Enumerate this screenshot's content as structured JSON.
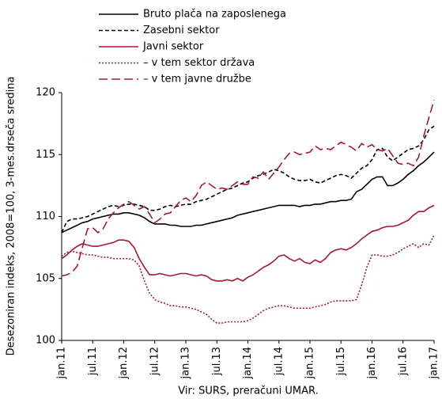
{
  "chart_data": {
    "type": "line",
    "ylabel": "Desezoniran indeks, 2008=100, 3-mes.drseča sredina",
    "source": "Vir: SURS, preračuni UMAR.",
    "categories": [
      "jan.11",
      null,
      null,
      null,
      null,
      null,
      "jul.11",
      null,
      null,
      null,
      null,
      null,
      "jan.12",
      null,
      null,
      null,
      null,
      null,
      "jul.12",
      null,
      null,
      null,
      null,
      null,
      "jan.13",
      null,
      null,
      null,
      null,
      null,
      "jul.13",
      null,
      null,
      null,
      null,
      null,
      "jan.14",
      null,
      null,
      null,
      null,
      null,
      "jul.14",
      null,
      null,
      null,
      null,
      null,
      "jan.15",
      null,
      null,
      null,
      null,
      null,
      "jul.15",
      null,
      null,
      null,
      null,
      null,
      "jan.16",
      null,
      null,
      null,
      null,
      null,
      "jul.16",
      null,
      null,
      null,
      null,
      null,
      "jan.17"
    ],
    "ylim": [
      100,
      120
    ],
    "yticks": [
      100,
      105,
      110,
      115,
      120
    ],
    "series": [
      {
        "name": "Bruto plača na zaposlenega",
        "color": "#000000",
        "dash": "solid",
        "values": [
          108.7,
          108.9,
          109.1,
          109.3,
          109.5,
          109.6,
          109.8,
          109.9,
          110.0,
          110.1,
          110.2,
          110.2,
          110.3,
          110.3,
          110.2,
          110.1,
          109.9,
          109.6,
          109.4,
          109.4,
          109.4,
          109.3,
          109.3,
          109.2,
          109.2,
          109.2,
          109.3,
          109.3,
          109.4,
          109.5,
          109.6,
          109.7,
          109.8,
          109.9,
          110.1,
          110.2,
          110.3,
          110.4,
          110.5,
          110.6,
          110.7,
          110.8,
          110.9,
          110.9,
          110.9,
          110.9,
          110.8,
          110.9,
          110.9,
          111.0,
          111.0,
          111.1,
          111.2,
          111.2,
          111.3,
          111.3,
          111.4,
          112.0,
          112.2,
          112.6,
          113.0,
          113.2,
          113.2,
          112.5,
          112.5,
          112.7,
          113.0,
          113.4,
          113.7,
          114.1,
          114.4,
          114.8,
          115.2
        ]
      },
      {
        "name": "Zasebni sektor",
        "color": "#000000",
        "dash": "dashed",
        "values": [
          108.7,
          109.6,
          109.8,
          109.8,
          109.9,
          110.0,
          110.2,
          110.4,
          110.6,
          110.8,
          110.9,
          110.8,
          110.9,
          111.0,
          111.0,
          110.9,
          110.8,
          110.5,
          110.5,
          110.6,
          110.8,
          110.9,
          110.8,
          110.9,
          111.0,
          111.0,
          111.2,
          111.3,
          111.4,
          111.6,
          111.8,
          112.0,
          112.2,
          112.3,
          112.5,
          112.7,
          112.8,
          113.1,
          113.3,
          113.4,
          113.6,
          113.8,
          113.7,
          113.5,
          113.2,
          113.0,
          112.9,
          112.9,
          113.0,
          112.8,
          112.7,
          112.9,
          113.1,
          113.3,
          113.4,
          113.3,
          113.1,
          113.5,
          113.9,
          114.1,
          114.6,
          115.4,
          115.5,
          114.8,
          114.5,
          114.8,
          115.1,
          115.4,
          115.5,
          115.7,
          116.2,
          117.0,
          117.3
        ]
      },
      {
        "name": "Javni sektor",
        "color": "#a5192e",
        "dash": "solid",
        "values": [
          106.6,
          106.9,
          107.3,
          107.6,
          107.8,
          107.7,
          107.6,
          107.6,
          107.7,
          107.8,
          107.9,
          108.1,
          108.1,
          108.0,
          107.5,
          106.6,
          105.9,
          105.3,
          105.3,
          105.4,
          105.3,
          105.2,
          105.3,
          105.4,
          105.4,
          105.3,
          105.2,
          105.3,
          105.2,
          104.9,
          104.8,
          104.8,
          104.9,
          104.8,
          105.0,
          104.8,
          105.1,
          105.3,
          105.6,
          105.9,
          106.1,
          106.4,
          106.8,
          106.9,
          106.6,
          106.4,
          106.6,
          106.3,
          106.2,
          106.5,
          106.3,
          106.6,
          107.1,
          107.3,
          107.4,
          107.3,
          107.5,
          107.8,
          108.2,
          108.5,
          108.8,
          108.9,
          109.1,
          109.2,
          109.2,
          109.3,
          109.5,
          109.7,
          110.1,
          110.4,
          110.4,
          110.7,
          110.9
        ]
      },
      {
        "name": "– v tem sektor država",
        "color": "#a5192e",
        "dash": "dotted",
        "values": [
          106.8,
          107.1,
          107.2,
          107.1,
          107.0,
          106.9,
          106.9,
          106.8,
          106.7,
          106.7,
          106.6,
          106.6,
          106.6,
          106.6,
          106.5,
          106.0,
          104.8,
          103.8,
          103.3,
          103.1,
          103.0,
          102.8,
          102.8,
          102.7,
          102.7,
          102.6,
          102.5,
          102.3,
          102.1,
          101.7,
          101.4,
          101.4,
          101.5,
          101.5,
          101.5,
          101.5,
          101.6,
          101.8,
          102.1,
          102.4,
          102.6,
          102.7,
          102.8,
          102.8,
          102.7,
          102.6,
          102.6,
          102.6,
          102.6,
          102.7,
          102.8,
          102.9,
          103.1,
          103.2,
          103.2,
          103.2,
          103.2,
          103.3,
          104.5,
          105.9,
          106.9,
          106.9,
          106.8,
          106.8,
          106.9,
          107.1,
          107.4,
          107.6,
          107.8,
          107.5,
          107.8,
          107.7,
          108.5
        ]
      },
      {
        "name": "– v tem javne družbe",
        "color": "#a5192e",
        "dash": "longdash",
        "values": [
          105.2,
          105.3,
          105.5,
          106.0,
          107.5,
          109.0,
          109.1,
          108.7,
          109.0,
          109.8,
          110.3,
          110.7,
          111.0,
          111.2,
          110.9,
          110.6,
          110.8,
          110.2,
          109.5,
          109.8,
          110.2,
          110.3,
          110.8,
          111.3,
          111.5,
          111.2,
          111.7,
          112.5,
          112.8,
          112.5,
          112.2,
          112.3,
          112.2,
          112.5,
          112.8,
          112.6,
          112.6,
          113.2,
          113.1,
          113.6,
          113.0,
          113.5,
          114.0,
          114.6,
          115.1,
          115.2,
          115.0,
          115.1,
          115.2,
          115.7,
          115.4,
          115.5,
          115.4,
          115.7,
          116.0,
          115.8,
          115.6,
          115.3,
          115.9,
          115.6,
          115.8,
          115.4,
          115.3,
          115.5,
          114.9,
          114.3,
          114.2,
          114.3,
          114.1,
          114.8,
          116.5,
          118.0,
          119.4
        ]
      }
    ]
  }
}
